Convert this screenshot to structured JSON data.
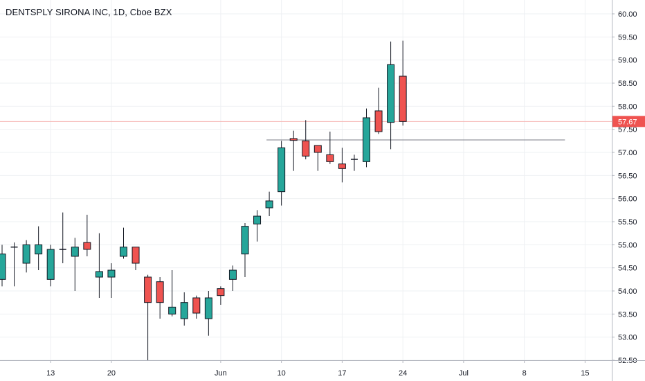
{
  "title": "DENTSPLY SIRONA INC, 1D, Cboe BZX",
  "colors": {
    "up": "#26a69a",
    "down": "#ef5350",
    "wick": "#131722",
    "grid": "#eef0f3",
    "axis": "#b2b5be",
    "last_price_line": "#f6b7b5",
    "last_price_badge": "#ef5350",
    "hline": "#787b86"
  },
  "chart_data": {
    "type": "candlestick",
    "title": "DENTSPLY SIRONA INC, 1D, Cboe BZX",
    "ylim": [
      52.5,
      60.25
    ],
    "yticks": [
      "60.00",
      "59.50",
      "59.00",
      "58.50",
      "58.00",
      "57.50",
      "57.00",
      "56.50",
      "56.00",
      "55.50",
      "55.00",
      "54.50",
      "54.00",
      "53.50",
      "53.00",
      "52.50"
    ],
    "x_tick_labels": [
      {
        "label": "13",
        "index": 4
      },
      {
        "label": "20",
        "index": 9
      },
      {
        "label": "Jun",
        "index": 18
      },
      {
        "label": "10",
        "index": 23
      },
      {
        "label": "17",
        "index": 28
      },
      {
        "label": "24",
        "index": 33
      },
      {
        "label": "Jul",
        "index": 38
      },
      {
        "label": "8",
        "index": 43
      },
      {
        "label": "15",
        "index": 48
      }
    ],
    "candles": [
      {
        "o": 54.25,
        "h": 55.0,
        "l": 54.1,
        "c": 54.8
      },
      {
        "o": 54.95,
        "h": 55.05,
        "l": 54.1,
        "c": 54.95
      },
      {
        "o": 54.6,
        "h": 55.1,
        "l": 54.4,
        "c": 55.0
      },
      {
        "o": 54.8,
        "h": 55.4,
        "l": 54.45,
        "c": 55.0
      },
      {
        "o": 54.25,
        "h": 55.0,
        "l": 54.1,
        "c": 54.9
      },
      {
        "o": 54.9,
        "h": 55.7,
        "l": 54.6,
        "c": 54.9
      },
      {
        "o": 54.75,
        "h": 55.15,
        "l": 54.0,
        "c": 54.95
      },
      {
        "o": 55.05,
        "h": 55.65,
        "l": 54.75,
        "c": 54.9
      },
      {
        "o": 54.3,
        "h": 55.25,
        "l": 53.85,
        "c": 54.42
      },
      {
        "o": 54.3,
        "h": 54.6,
        "l": 53.85,
        "c": 54.45
      },
      {
        "o": 54.75,
        "h": 55.37,
        "l": 54.7,
        "c": 54.95
      },
      {
        "o": 54.95,
        "h": 54.95,
        "l": 54.45,
        "c": 54.6
      },
      {
        "o": 54.3,
        "h": 54.35,
        "l": 52.5,
        "c": 53.75
      },
      {
        "o": 54.2,
        "h": 54.3,
        "l": 53.4,
        "c": 53.75
      },
      {
        "o": 53.5,
        "h": 54.45,
        "l": 53.45,
        "c": 53.65
      },
      {
        "o": 53.4,
        "h": 53.97,
        "l": 53.25,
        "c": 53.75
      },
      {
        "o": 53.85,
        "h": 53.9,
        "l": 53.4,
        "c": 53.52
      },
      {
        "o": 53.4,
        "h": 54.0,
        "l": 53.03,
        "c": 53.85
      },
      {
        "o": 54.05,
        "h": 54.1,
        "l": 53.7,
        "c": 53.9
      },
      {
        "o": 54.25,
        "h": 54.55,
        "l": 54.0,
        "c": 54.45
      },
      {
        "o": 54.8,
        "h": 55.47,
        "l": 54.3,
        "c": 55.4
      },
      {
        "o": 55.45,
        "h": 55.75,
        "l": 55.07,
        "c": 55.62
      },
      {
        "o": 55.8,
        "h": 56.15,
        "l": 55.62,
        "c": 55.95
      },
      {
        "o": 56.15,
        "h": 57.25,
        "l": 55.85,
        "c": 57.1
      },
      {
        "o": 57.3,
        "h": 57.47,
        "l": 56.6,
        "c": 57.26
      },
      {
        "o": 57.25,
        "h": 57.7,
        "l": 56.85,
        "c": 56.92
      },
      {
        "o": 57.15,
        "h": 57.15,
        "l": 56.6,
        "c": 57.0
      },
      {
        "o": 56.95,
        "h": 57.45,
        "l": 56.75,
        "c": 56.8
      },
      {
        "o": 56.75,
        "h": 57.1,
        "l": 56.35,
        "c": 56.65
      },
      {
        "o": 56.85,
        "h": 56.95,
        "l": 56.6,
        "c": 56.85
      },
      {
        "o": 56.8,
        "h": 57.95,
        "l": 56.68,
        "c": 57.75
      },
      {
        "o": 57.9,
        "h": 58.4,
        "l": 57.4,
        "c": 57.45
      },
      {
        "o": 57.65,
        "h": 59.4,
        "l": 57.07,
        "c": 58.9
      },
      {
        "o": 58.65,
        "h": 59.42,
        "l": 57.58,
        "c": 57.67
      }
    ],
    "last_price": 57.67,
    "last_price_label": "57.67",
    "horizontal_line": {
      "value": 57.27,
      "from_index": 22,
      "to_index": 46
    }
  }
}
